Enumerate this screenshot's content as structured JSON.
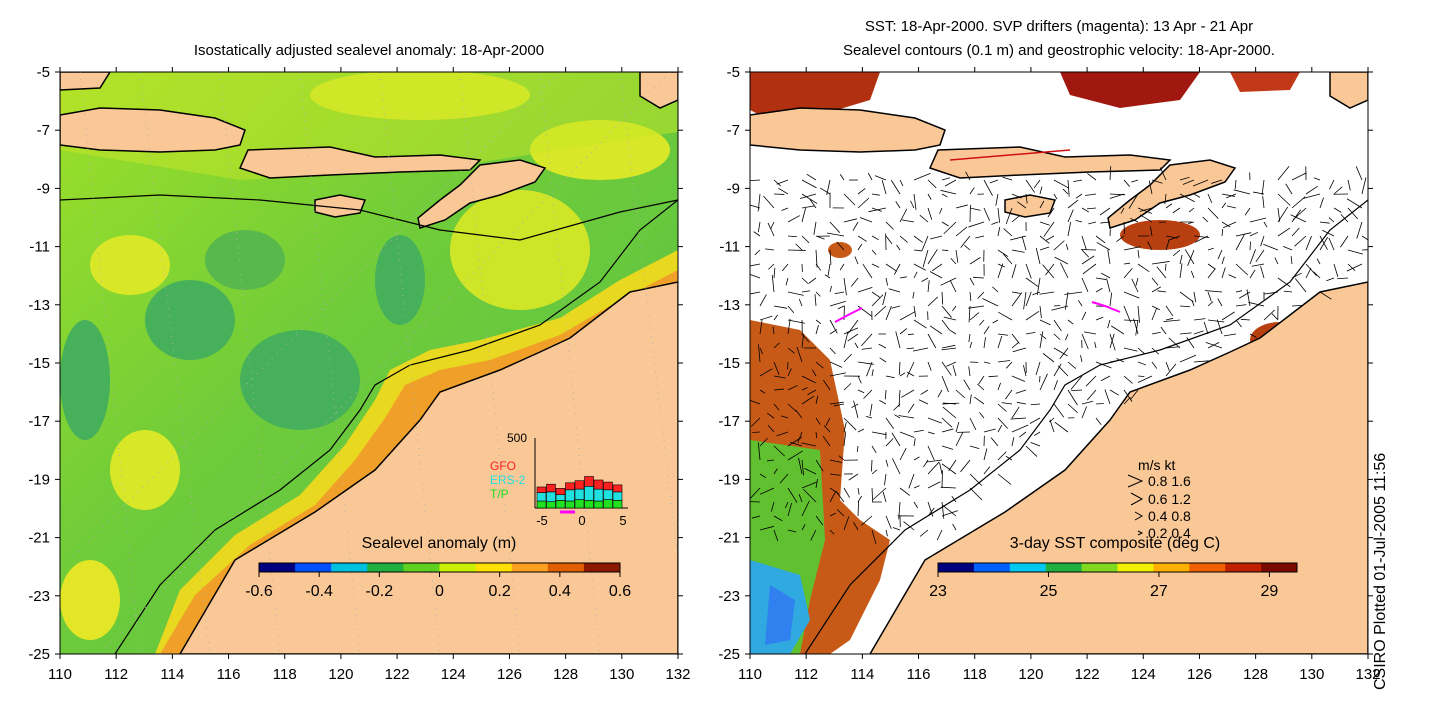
{
  "left_panel": {
    "title": "Isostatically adjusted sealevel anomaly: 18-Apr-2000",
    "colorbar_label": "Sealevel anomaly (m)",
    "colorbar_ticks": [
      "-0.6",
      "-0.4",
      "-0.2",
      "0",
      "0.2",
      "0.4",
      "0.6"
    ],
    "colorbar_colors": [
      "#00007f",
      "#0050ff",
      "#00c0e0",
      "#20b040",
      "#60d020",
      "#c8f000",
      "#ffe000",
      "#ffa020",
      "#e06000",
      "#8b1800"
    ],
    "inset": {
      "ymax_label": "500",
      "x_ticks": [
        "-5",
        "0",
        "5"
      ],
      "legend": [
        {
          "name": "GFO",
          "color": "#ff2020"
        },
        {
          "name": "ERS-2",
          "color": "#20e0e0"
        },
        {
          "name": "T/P",
          "color": "#20e020"
        }
      ],
      "bars_gfo": [
        40,
        55,
        45,
        50,
        60,
        70,
        65,
        55,
        50
      ],
      "bars_ers": [
        60,
        70,
        40,
        80,
        75,
        100,
        85,
        70,
        60
      ],
      "bars_tp": [
        50,
        45,
        55,
        50,
        60,
        55,
        50,
        60,
        55
      ]
    }
  },
  "right_panel": {
    "title_line1": "SST: 18-Apr-2000. SVP drifters (magenta): 13 Apr - 21 Apr",
    "title_line2": "Sealevel contours (0.1 m) and geostrophic velocity: 18-Apr-2000.",
    "colorbar_label": "3-day SST composite (deg C)",
    "colorbar_ticks": [
      "23",
      "25",
      "27",
      "29"
    ],
    "colorbar_colors": [
      "#00007f",
      "#0060ff",
      "#00c8f0",
      "#20b040",
      "#80d820",
      "#f0f000",
      "#ffb000",
      "#f06000",
      "#c02000",
      "#7a0a00"
    ],
    "velocity_legend": {
      "header": "m/s  kt",
      "rows": [
        "0.8  1.6",
        "0.6  1.2",
        "0.4  0.8",
        "0.2  0.4"
      ]
    }
  },
  "axes": {
    "y_ticks": [
      "-5",
      "-7",
      "-9",
      "-11",
      "-13",
      "-15",
      "-17",
      "-19",
      "-21",
      "-23",
      "-25"
    ],
    "x_ticks": [
      "110",
      "112",
      "114",
      "116",
      "118",
      "120",
      "122",
      "124",
      "126",
      "128",
      "130",
      "132"
    ]
  },
  "credit": "CSIRO Plotted 01-Jul-2005 11:56",
  "palette": {
    "land": "#fac896",
    "sea_green": "#70d030",
    "sea_yellow": "#e6e61e",
    "shelf_orange": "#f0a028",
    "deep_green": "#3caa50"
  }
}
